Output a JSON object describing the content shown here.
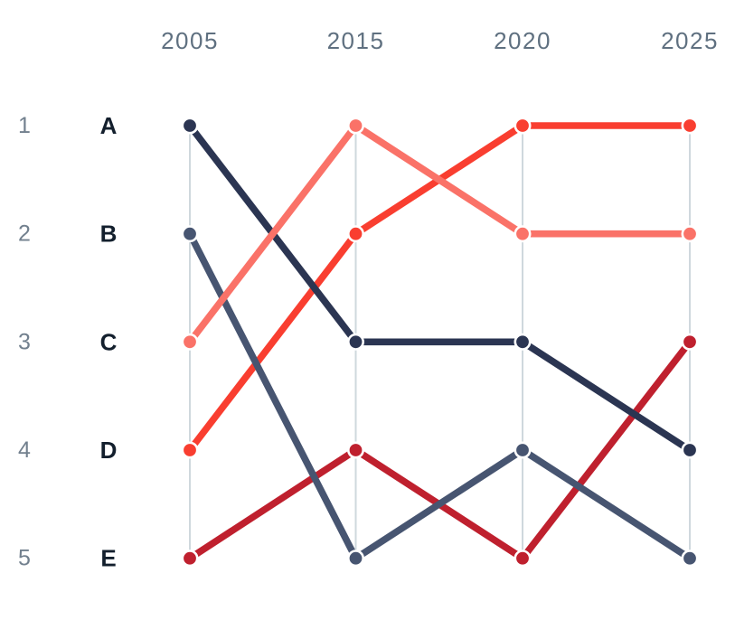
{
  "chart_data": {
    "type": "line",
    "variant": "bump-ranking-chart",
    "title": "",
    "x": [
      "2005",
      "2015",
      "2020",
      "2025"
    ],
    "x_axis_position": "top",
    "y_axis": {
      "labels": [
        "1",
        "2",
        "3",
        "4",
        "5"
      ],
      "direction": "rank, 1 = top"
    },
    "row_letters": [
      "A",
      "B",
      "C",
      "D",
      "E"
    ],
    "series": [
      {
        "name": "A",
        "color": "#2b3552",
        "ranks": [
          1,
          3,
          3,
          4
        ]
      },
      {
        "name": "B",
        "color": "#475571",
        "ranks": [
          2,
          5,
          4,
          5
        ]
      },
      {
        "name": "C",
        "color": "#fa7268",
        "ranks": [
          3,
          1,
          2,
          2
        ]
      },
      {
        "name": "D",
        "color": "#f93e30",
        "ranks": [
          4,
          2,
          1,
          1
        ]
      },
      {
        "name": "E",
        "color": "#bf202e",
        "ranks": [
          5,
          4,
          5,
          3
        ]
      }
    ],
    "draw_order": [
      "D",
      "E",
      "A",
      "B",
      "C"
    ],
    "grid": {
      "vertical_gridlines": true,
      "color": "#cfd8dd"
    },
    "label_colors": {
      "year": "#5f7080",
      "rank_number": "#72808e",
      "letter": "#131f2d"
    },
    "marker": {
      "fill_stroke": "#ffffff"
    },
    "background": "#ffffff",
    "legend_position": "none"
  }
}
